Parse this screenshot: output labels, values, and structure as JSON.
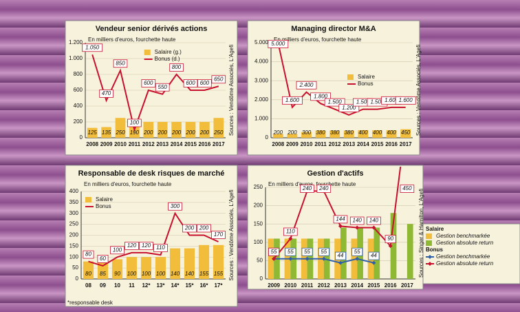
{
  "chart_data": [
    {
      "type": "combo",
      "title": "Vendeur senior dérivés actions",
      "subtitle": "En milliers d'euros, fourchette haute",
      "source": "Sources : Vendôme Associés, L'Agefi",
      "categories": [
        "2008",
        "2009",
        "2010",
        "2011",
        "2012",
        "2013",
        "2014",
        "2015",
        "2016",
        "2017"
      ],
      "series": [
        {
          "name": "Salaire (g.)",
          "type": "bar",
          "color": "#f2bd3a",
          "data_labels": true,
          "values": [
            125,
            135,
            250,
            190,
            200,
            200,
            200,
            200,
            200,
            250
          ]
        },
        {
          "name": "Bonus (d.)",
          "type": "line",
          "color": "#c8102e",
          "data_labels": true,
          "values": [
            1050,
            470,
            850,
            100,
            600,
            550,
            800,
            600,
            600,
            650
          ],
          "value_labels": [
            "1.050",
            "470",
            "850",
            "100",
            "600",
            "550",
            "800",
            "600",
            "600",
            "650"
          ]
        }
      ],
      "ylim": [
        0,
        1200
      ],
      "yticks": [
        0,
        200,
        400,
        600,
        800,
        {
          "value": 1000,
          "label": "1.000"
        },
        {
          "value": 1200,
          "label": "1.200"
        }
      ],
      "grid": true,
      "legend": "upper center"
    },
    {
      "type": "combo",
      "title": "Managing director M&A",
      "subtitle": "En milliers d'euros, fourchette haute",
      "source": "Sources : Vendôme Associés, L'Agefi",
      "categories": [
        "2008",
        "2009",
        "2010",
        "2011",
        "2012",
        "2013",
        "2014",
        "2015",
        "2016",
        "2017"
      ],
      "series": [
        {
          "name": "Salaire",
          "type": "bar",
          "color": "#f2bd3a",
          "data_labels": true,
          "values": [
            200,
            200,
            300,
            380,
            380,
            380,
            400,
            400,
            400,
            450
          ]
        },
        {
          "name": "Bonus",
          "type": "line",
          "color": "#c8102e",
          "data_labels": true,
          "values": [
            5000,
            1600,
            2400,
            1800,
            1500,
            1200,
            1500,
            1500,
            1600,
            1600
          ],
          "value_labels": [
            "5.000",
            "1.600",
            "2.400",
            "1.800",
            "1.500",
            "1.200",
            "1.500",
            "1.500",
            "1.600",
            "1.600"
          ]
        }
      ],
      "ylim": [
        0,
        5000
      ],
      "yticks": [
        0,
        {
          "value": 1000,
          "label": "1.000"
        },
        {
          "value": 2000,
          "label": "2.000"
        },
        {
          "value": 3000,
          "label": "3.000"
        },
        {
          "value": 4000,
          "label": "4.000"
        },
        {
          "value": 5000,
          "label": "5.000"
        }
      ],
      "grid": true,
      "legend": "center right"
    },
    {
      "type": "combo",
      "title": "Responsable de desk risques de marché",
      "subtitle": "En milliers d'euros, fourchette haute",
      "source": "Sources : Vendôme Associés, L'Agefi",
      "footnote": "*responsable desk",
      "categories": [
        "08",
        "09",
        "10",
        "11",
        "12*",
        "13*",
        "14*",
        "15*",
        "16*",
        "17*"
      ],
      "series": [
        {
          "name": "Salaire",
          "type": "bar",
          "color": "#f2bd3a",
          "data_labels": true,
          "values": [
            80,
            85,
            90,
            100,
            100,
            100,
            140,
            140,
            155,
            155
          ]
        },
        {
          "name": "Bonus",
          "type": "line",
          "color": "#c8102e",
          "data_labels": true,
          "values": [
            80,
            60,
            100,
            120,
            120,
            110,
            300,
            200,
            200,
            170
          ]
        }
      ],
      "ylim": [
        0,
        400
      ],
      "yticks": [
        0,
        50,
        100,
        150,
        200,
        250,
        300,
        350,
        400
      ],
      "grid": true,
      "legend": "upper left"
    },
    {
      "type": "combo",
      "title": "Gestion d'actifs",
      "subtitle": "En milliers d'euros, fourchette haute",
      "source": "Sources : Singer & Hamilton, L'Agefi",
      "categories": [
        "2009",
        "2010",
        "2011",
        "2012",
        "2013",
        "2014",
        "2015",
        "2016",
        "2017"
      ],
      "series": [
        {
          "name": "Gestion benchmarkée",
          "group": "Salaire",
          "type": "bar",
          "color": "#f2bd3a",
          "data_labels": false,
          "values": [
            110,
            110,
            110,
            110,
            110,
            110,
            110,
            null,
            null
          ]
        },
        {
          "name": "Gestion absolute return",
          "group": "Salaire",
          "type": "bar",
          "color": "#8fb935",
          "data_labels": false,
          "values": [
            110,
            110,
            110,
            110,
            140,
            140,
            140,
            180,
            150
          ]
        },
        {
          "name": "Gestion benchmarkée",
          "group": "Bonus",
          "type": "line",
          "color": "#2e5fa8",
          "data_labels": true,
          "values": [
            55,
            55,
            55,
            55,
            44,
            55,
            44,
            null,
            null
          ]
        },
        {
          "name": "Gestion absolute return",
          "group": "Bonus",
          "type": "line",
          "color": "#c8102e",
          "data_labels": true,
          "values": [
            55,
            110,
            240,
            240,
            144,
            140,
            140,
            90,
            450
          ]
        }
      ],
      "ylim": [
        0,
        250
      ],
      "yticks": [
        0,
        50,
        100,
        150,
        200,
        250
      ],
      "grid": true,
      "legend": "outside right"
    }
  ]
}
